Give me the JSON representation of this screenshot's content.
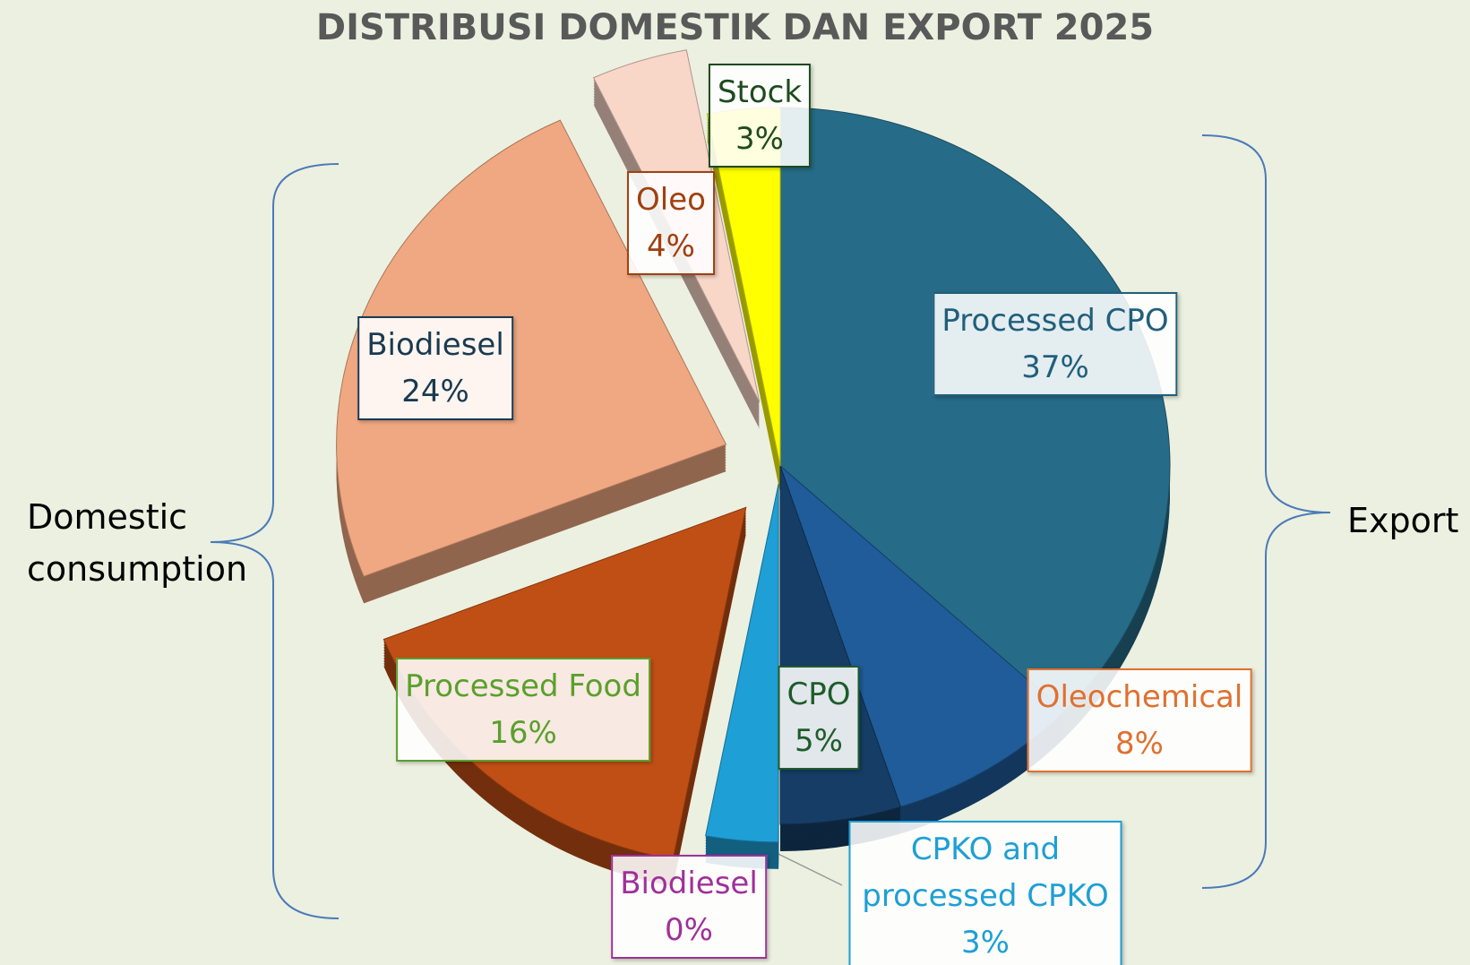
{
  "chart_data": {
    "type": "pie",
    "title": "DISTRIBUSI DOMESTIK DAN EXPORT 2025",
    "categories": [
      "Processed CPO",
      "Oleochemical",
      "CPO",
      "CPKO and processed CPKO",
      "Biodiesel",
      "Processed Food",
      "Biodiesel",
      "Oleo",
      "Stock"
    ],
    "values": [
      37,
      8,
      5,
      3,
      0,
      16,
      24,
      4,
      3
    ],
    "value_labels": [
      "37%",
      "8%",
      "5%",
      "3%",
      "0%",
      "16%",
      "24%",
      "4%",
      "3%"
    ],
    "colors": [
      "#266b87",
      "#1f5c99",
      "#163d66",
      "#1e9fd6",
      "#9a3a94",
      "#c04f15",
      "#f0a882",
      "#f8d6c8",
      "#ffff00"
    ],
    "label_colors": [
      "#215f7c",
      "#e07030",
      "#1e5c2a",
      "#1e9fd6",
      "#a0309a",
      "#5aa02c",
      "#1a3a50",
      "#a04010",
      "#1e4a1e"
    ],
    "annotations": [
      "Domestic consumption",
      "Export"
    ]
  }
}
